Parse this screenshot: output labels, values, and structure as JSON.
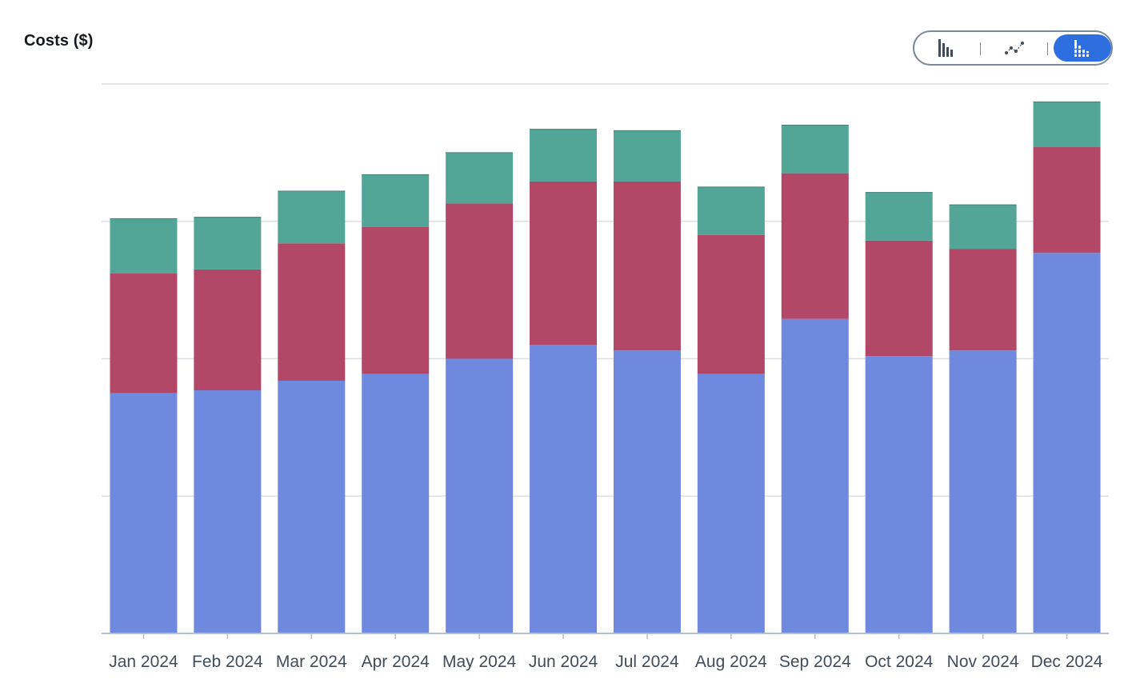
{
  "title": "Costs ($)",
  "chart_toggle": {
    "options": [
      {
        "icon": "bar-chart-icon",
        "selected": false
      },
      {
        "icon": "line-chart-icon",
        "selected": false
      },
      {
        "icon": "stacked-bar-chart-icon",
        "selected": true
      }
    ]
  },
  "colors": {
    "series_1": "#6f89df",
    "series_2": "#b34767",
    "series_3": "#53a597",
    "grid": "#dcdfe3",
    "axis": "#b6bec9",
    "selected": "#2d6fe0"
  },
  "chart_data": {
    "type": "bar",
    "stacked": true,
    "title": "Costs ($)",
    "xlabel": "",
    "ylabel": "",
    "categories": [
      "Jan 2024",
      "Feb 2024",
      "Mar 2024",
      "Apr 2024",
      "May 2024",
      "Jun 2024",
      "Jul 2024",
      "Aug 2024",
      "Sep 2024",
      "Oct 2024",
      "Nov 2024",
      "Dec 2024"
    ],
    "series": [
      {
        "values": [
          1.75,
          1.77,
          1.84,
          1.89,
          2.0,
          2.1,
          2.06,
          1.89,
          2.29,
          2.02,
          2.06,
          2.77
        ]
      },
      {
        "values": [
          0.87,
          0.88,
          1.0,
          1.07,
          1.13,
          1.19,
          1.23,
          1.01,
          1.06,
          0.84,
          0.74,
          0.77
        ]
      },
      {
        "values": [
          0.4,
          0.38,
          0.38,
          0.38,
          0.37,
          0.38,
          0.37,
          0.35,
          0.35,
          0.35,
          0.32,
          0.33
        ]
      }
    ],
    "ylim": [
      0,
      4
    ],
    "y_gridlines": [
      0,
      1,
      2,
      3,
      4
    ],
    "y_tick_labels_shown": false,
    "grid": true,
    "legend": "none"
  }
}
